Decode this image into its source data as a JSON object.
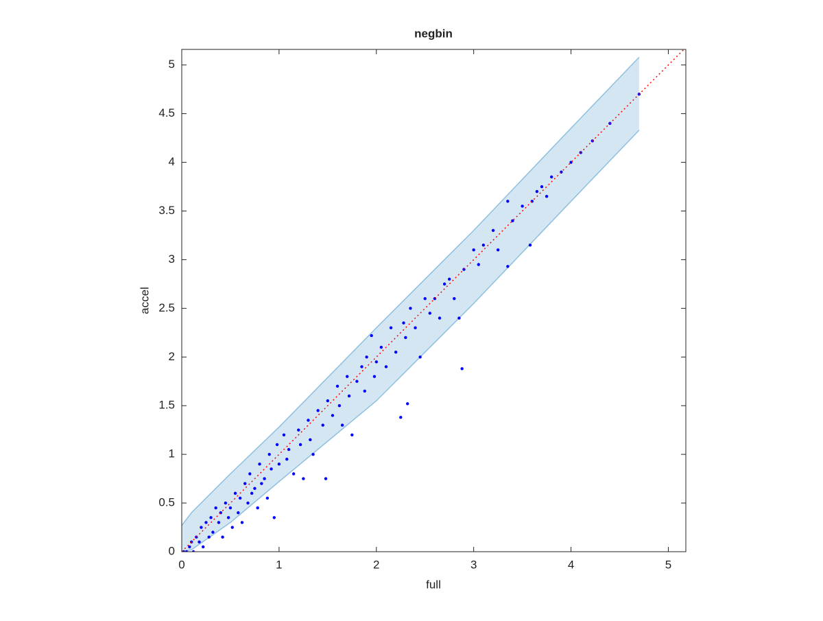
{
  "chart_data": {
    "type": "scatter",
    "title": "negbin",
    "x_label": "full",
    "y_label": "accel",
    "xlim": [
      0,
      5.18
    ],
    "ylim": [
      0,
      5.16
    ],
    "xticks": [
      0,
      1,
      2,
      3,
      4,
      5
    ],
    "yticks": [
      0,
      0.5,
      1,
      1.5,
      2,
      2.5,
      3,
      3.5,
      4,
      4.5,
      5
    ],
    "color": "#0000ff",
    "band": {
      "x": [
        0,
        0.1,
        0.5,
        1,
        2,
        3,
        4,
        4.7
      ],
      "upper": [
        0.27,
        0.4,
        0.8,
        1.28,
        2.3,
        3.3,
        4.35,
        5.08
      ],
      "lower": [
        0,
        0.02,
        0.3,
        0.72,
        1.55,
        2.55,
        3.6,
        4.33
      ],
      "color": "#d5e6f3",
      "edge_color": "#8dbfe0"
    },
    "reference_line": {
      "x": [
        0,
        5.18
      ],
      "y": [
        0,
        5.18
      ],
      "color": "#ff0000"
    },
    "x": [
      0.02,
      0.05,
      0.08,
      0.1,
      0.12,
      0.15,
      0.18,
      0.2,
      0.22,
      0.25,
      0.28,
      0.3,
      0.32,
      0.35,
      0.38,
      0.4,
      0.42,
      0.45,
      0.48,
      0.5,
      0.52,
      0.55,
      0.58,
      0.6,
      0.62,
      0.65,
      0.68,
      0.7,
      0.72,
      0.75,
      0.78,
      0.8,
      0.82,
      0.85,
      0.88,
      0.9,
      0.92,
      0.95,
      0.98,
      1.0,
      1.05,
      1.08,
      1.1,
      1.15,
      1.2,
      1.22,
      1.25,
      1.3,
      1.32,
      1.35,
      1.4,
      1.45,
      1.48,
      1.5,
      1.55,
      1.6,
      1.62,
      1.65,
      1.7,
      1.72,
      1.75,
      1.8,
      1.85,
      1.88,
      1.9,
      1.95,
      1.98,
      2.0,
      2.05,
      2.1,
      2.15,
      2.2,
      2.25,
      2.28,
      2.3,
      2.32,
      2.35,
      2.4,
      2.45,
      2.5,
      2.55,
      2.6,
      2.65,
      2.7,
      2.75,
      2.8,
      2.85,
      2.88,
      2.9,
      3.0,
      3.05,
      3.1,
      3.2,
      3.25,
      3.35,
      3.35,
      3.4,
      3.5,
      3.58,
      3.6,
      3.65,
      3.7,
      3.75,
      3.8,
      3.9,
      4.0,
      4.1,
      4.22,
      4.4,
      4.7
    ],
    "y": [
      0,
      0,
      0.05,
      0.1,
      0,
      0.15,
      0.1,
      0.25,
      0.05,
      0.3,
      0.15,
      0.35,
      0.2,
      0.45,
      0.3,
      0.4,
      0.15,
      0.5,
      0.35,
      0.45,
      0.25,
      0.6,
      0.4,
      0.55,
      0.3,
      0.7,
      0.5,
      0.8,
      0.6,
      0.65,
      0.45,
      0.9,
      0.7,
      0.75,
      0.55,
      1.0,
      0.85,
      0.35,
      1.1,
      0.9,
      1.2,
      0.95,
      1.05,
      0.8,
      1.25,
      1.1,
      0.75,
      1.35,
      1.15,
      1.0,
      1.45,
      1.3,
      0.75,
      1.55,
      1.4,
      1.7,
      1.5,
      1.3,
      1.8,
      1.6,
      1.2,
      1.75,
      1.9,
      1.65,
      2.0,
      2.22,
      1.8,
      1.95,
      2.1,
      1.9,
      2.3,
      2.05,
      1.38,
      2.35,
      2.2,
      1.52,
      2.5,
      2.3,
      2.0,
      2.6,
      2.45,
      2.6,
      2.4,
      2.75,
      2.8,
      2.6,
      2.4,
      1.88,
      2.9,
      3.1,
      2.95,
      3.15,
      3.3,
      3.1,
      2.93,
      3.6,
      3.4,
      3.55,
      3.15,
      3.6,
      3.7,
      3.75,
      3.65,
      3.85,
      3.9,
      4.0,
      4.1,
      4.22,
      4.4,
      4.7
    ]
  }
}
